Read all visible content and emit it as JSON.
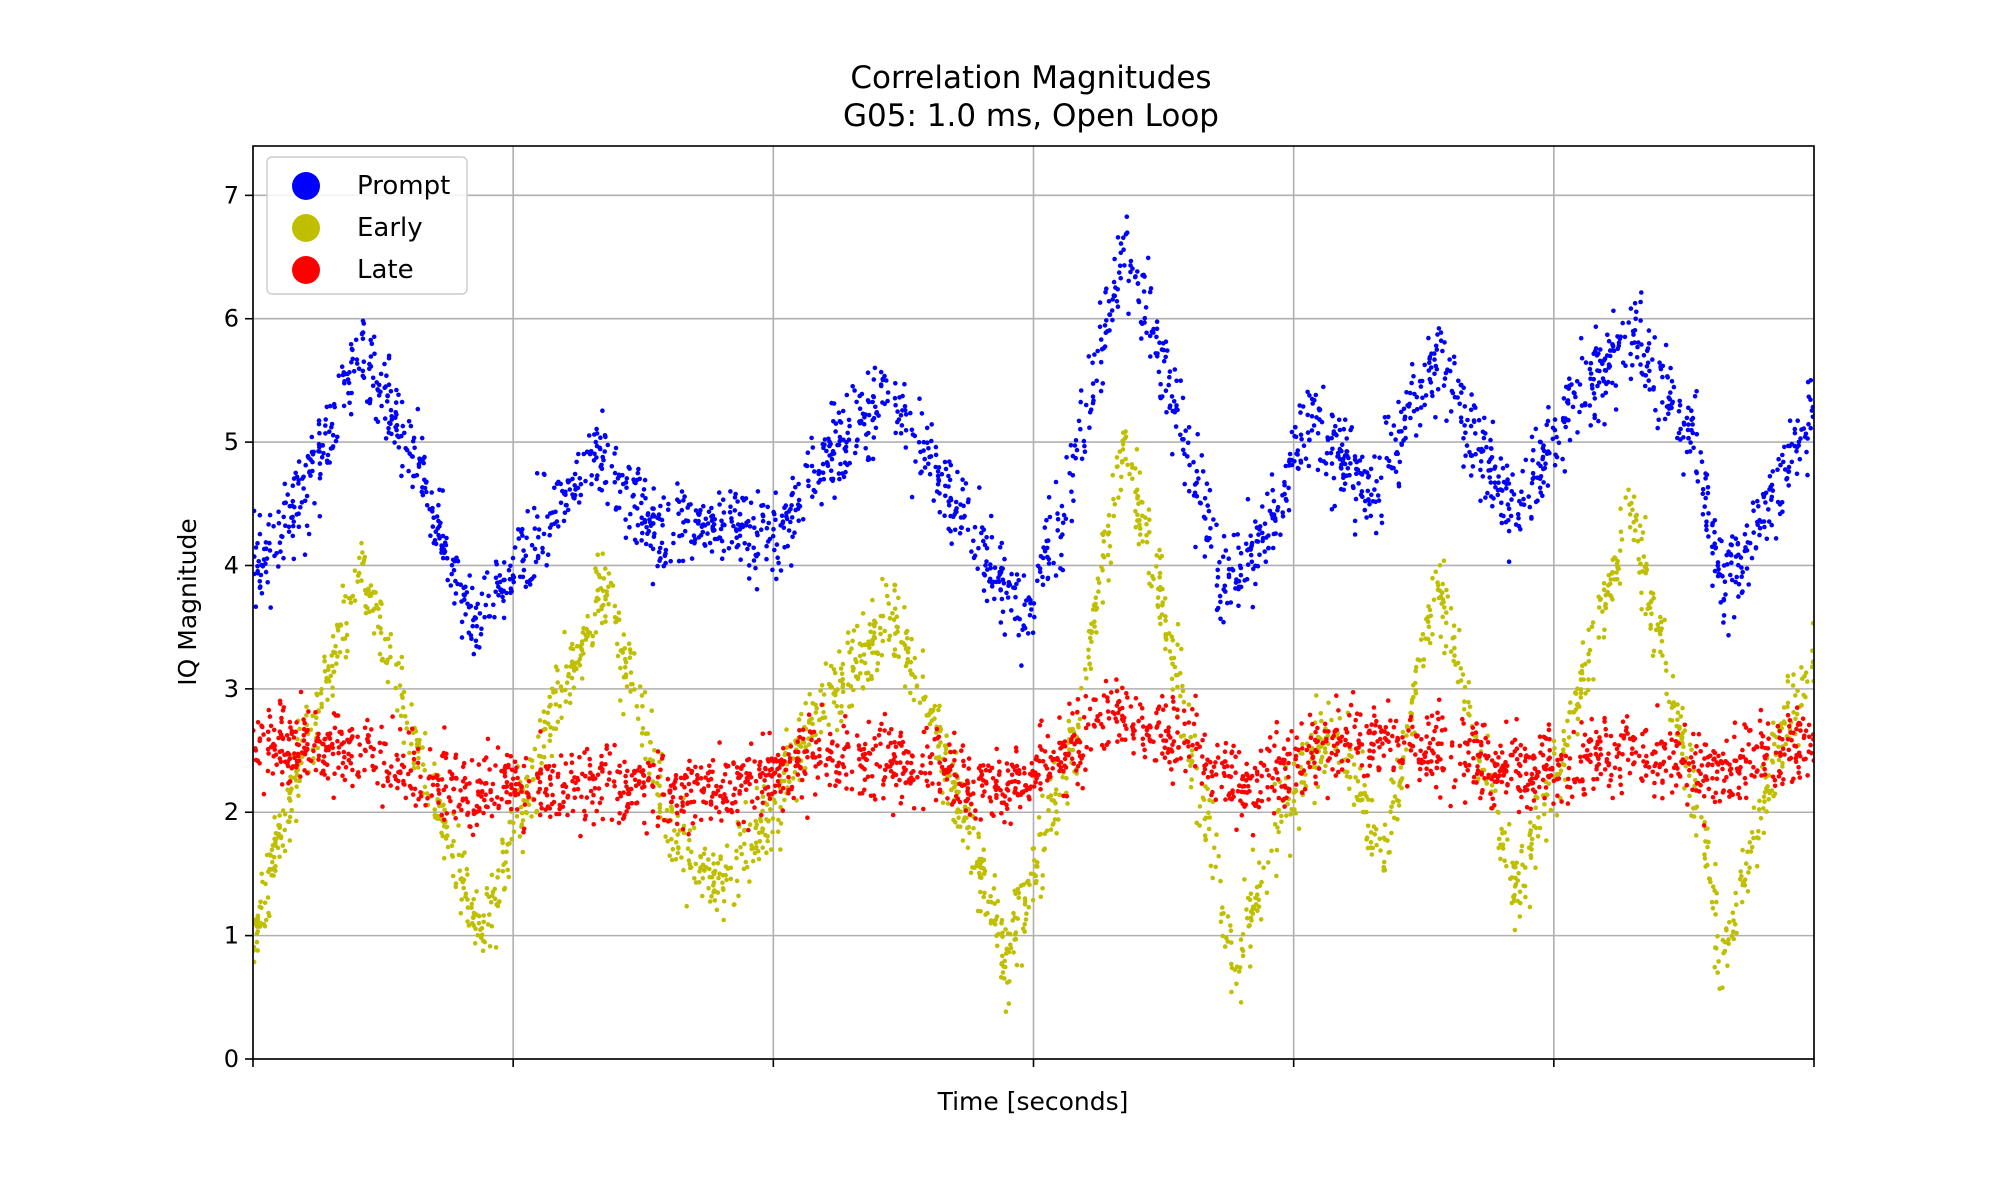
{
  "chart_data": {
    "type": "scatter",
    "title": "Correlation Magnitudes",
    "subtitle": "G05: 1.0 ms, Open Loop",
    "xlabel": "Time [seconds]",
    "ylabel": "IQ Magnitude",
    "xlim": [
      0,
      6
    ],
    "ylim": [
      0,
      7.4
    ],
    "x_ticks": [
      0,
      1,
      2,
      3,
      4,
      5,
      6
    ],
    "x_tick_labels_shown": false,
    "y_ticks": [
      0,
      1,
      2,
      3,
      4,
      5,
      6,
      7
    ],
    "grid": true,
    "legend_position": "top-left",
    "series": [
      {
        "name": "Prompt",
        "color": "#0000ff",
        "spread": 0.32,
        "centerline": [
          [
            0.0,
            3.95
          ],
          [
            0.2,
            4.6
          ],
          [
            0.42,
            5.75
          ],
          [
            0.6,
            4.95
          ],
          [
            0.85,
            3.5
          ],
          [
            1.05,
            4.1
          ],
          [
            1.3,
            4.9
          ],
          [
            1.55,
            4.25
          ],
          [
            1.8,
            4.3
          ],
          [
            2.0,
            4.2
          ],
          [
            2.2,
            4.85
          ],
          [
            2.45,
            5.35
          ],
          [
            2.7,
            4.5
          ],
          [
            2.95,
            3.6
          ],
          [
            3.1,
            4.3
          ],
          [
            3.35,
            6.55
          ],
          [
            3.55,
            5.3
          ],
          [
            3.72,
            3.8
          ],
          [
            3.95,
            4.5
          ],
          [
            4.05,
            5.2
          ],
          [
            4.3,
            4.6
          ],
          [
            4.55,
            5.65
          ],
          [
            4.85,
            4.4
          ],
          [
            5.05,
            5.2
          ],
          [
            5.3,
            5.9
          ],
          [
            5.55,
            4.9
          ],
          [
            5.65,
            3.8
          ],
          [
            5.85,
            4.6
          ],
          [
            6.0,
            5.2
          ]
        ]
      },
      {
        "name": "Early",
        "color": "#bfbf00",
        "spread": 0.3,
        "centerline": [
          [
            0.0,
            0.95
          ],
          [
            0.15,
            2.2
          ],
          [
            0.42,
            3.95
          ],
          [
            0.65,
            2.4
          ],
          [
            0.88,
            1.0
          ],
          [
            1.05,
            2.2
          ],
          [
            1.35,
            3.85
          ],
          [
            1.6,
            1.9
          ],
          [
            1.75,
            1.4
          ],
          [
            1.95,
            1.8
          ],
          [
            2.15,
            2.7
          ],
          [
            2.45,
            3.6
          ],
          [
            2.7,
            2.2
          ],
          [
            2.9,
            0.8
          ],
          [
            3.15,
            2.5
          ],
          [
            3.35,
            5.0
          ],
          [
            3.55,
            3.1
          ],
          [
            3.78,
            0.75
          ],
          [
            3.95,
            2.0
          ],
          [
            4.15,
            2.7
          ],
          [
            4.35,
            1.6
          ],
          [
            4.55,
            3.9
          ],
          [
            4.85,
            1.35
          ],
          [
            5.05,
            2.6
          ],
          [
            5.3,
            4.5
          ],
          [
            5.55,
            2.0
          ],
          [
            5.65,
            0.8
          ],
          [
            5.85,
            2.5
          ],
          [
            6.0,
            3.2
          ]
        ]
      },
      {
        "name": "Late",
        "color": "#ff0000",
        "spread": 0.28,
        "centerline": [
          [
            0.0,
            2.55
          ],
          [
            0.4,
            2.5
          ],
          [
            0.85,
            2.15
          ],
          [
            1.3,
            2.25
          ],
          [
            1.75,
            2.15
          ],
          [
            2.2,
            2.45
          ],
          [
            2.6,
            2.35
          ],
          [
            2.9,
            2.15
          ],
          [
            3.3,
            2.8
          ],
          [
            3.6,
            2.55
          ],
          [
            3.8,
            2.2
          ],
          [
            4.2,
            2.6
          ],
          [
            4.6,
            2.5
          ],
          [
            4.9,
            2.3
          ],
          [
            5.3,
            2.5
          ],
          [
            5.65,
            2.3
          ],
          [
            6.0,
            2.6
          ]
        ]
      }
    ]
  }
}
